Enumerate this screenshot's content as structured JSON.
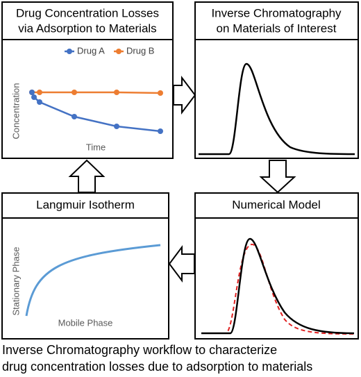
{
  "panels": [
    {
      "title_lines": [
        "Drug Concentration Losses",
        "via Adsorption to Materials"
      ],
      "legend": [
        "Drug A",
        "Drug B"
      ],
      "y_label": "Concentration",
      "x_label": "Time"
    },
    {
      "title_lines": [
        "Inverse Chromatography",
        "on Materials of Interest"
      ]
    },
    {
      "title": "Numerical Model"
    },
    {
      "title": "Langmuir Isotherm",
      "y_label": "Stationary Phase",
      "x_label": "Mobile Phase"
    }
  ],
  "caption": [
    "Inverse Chromatography workflow to characterize",
    "drug concentration losses due to adsorption to materials"
  ]
}
